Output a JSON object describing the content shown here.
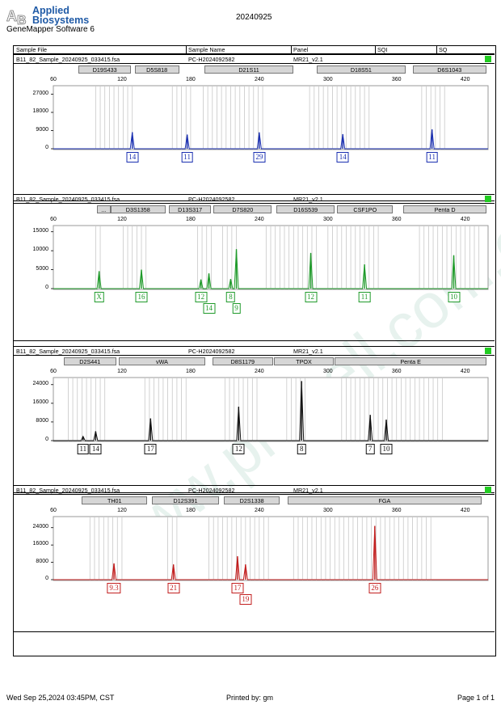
{
  "header": {
    "brand_line1": "Applied",
    "brand_line2": "Biosystems",
    "software": "GeneMapper Software 6",
    "date": "20240925"
  },
  "columns": [
    "Sample File",
    "Sample Name",
    "Panel",
    "SQI",
    "SQ"
  ],
  "watermark": "www.probell.com.cn",
  "footer": {
    "printed_at": "Wed Sep 25,2024 03:45PM, CST",
    "printed_by": "Printed by: gm",
    "page": "Page 1 of 1"
  },
  "chart_data": [
    {
      "type": "line",
      "dye_color": "#1a2fb0",
      "sample_file": "B11_82_Sample_20240925_033415.fsa",
      "sample_name": "PC-H2024092582",
      "panel": "MR21_v2.1",
      "xlim": [
        60,
        440
      ],
      "x_ticks": [
        60,
        120,
        180,
        240,
        300,
        360,
        420
      ],
      "ylim": [
        0,
        30000
      ],
      "y_ticks": [
        0,
        9000,
        18000,
        27000
      ],
      "loci": [
        {
          "name": "D19S433",
          "start": 82,
          "end": 128
        },
        {
          "name": "D5S818",
          "start": 131,
          "end": 170
        },
        {
          "name": "D21S11",
          "start": 192,
          "end": 270
        },
        {
          "name": "D18S51",
          "start": 290,
          "end": 368
        },
        {
          "name": "D6S1043",
          "start": 374,
          "end": 444
        }
      ],
      "peaks": [
        {
          "x": 129,
          "height": 8200,
          "allele": "14"
        },
        {
          "x": 177,
          "height": 7000,
          "allele": "11"
        },
        {
          "x": 240,
          "height": 8100,
          "allele": "29"
        },
        {
          "x": 313,
          "height": 7200,
          "allele": "14"
        },
        {
          "x": 391,
          "height": 9600,
          "allele": "11"
        }
      ],
      "bins": [
        [
          97,
          131
        ],
        [
          164,
          180
        ],
        [
          191,
          243
        ],
        [
          284,
          337
        ],
        [
          382,
          404
        ]
      ]
    },
    {
      "type": "line",
      "dye_color": "#1f9a2a",
      "sample_file": "B11_82_Sample_20240925_033415.fsa",
      "sample_name": "PC-H2024092582",
      "panel": "MR21_v2.1",
      "xlim": [
        60,
        440
      ],
      "x_ticks": [
        60,
        120,
        180,
        240,
        300,
        360,
        420
      ],
      "ylim": [
        0,
        16000
      ],
      "y_ticks": [
        0,
        5000,
        10000,
        15000
      ],
      "loci": [
        {
          "name": "...",
          "start": 98,
          "end": 110
        },
        {
          "name": "D3S1358",
          "start": 110,
          "end": 158
        },
        {
          "name": "D13S317",
          "start": 161,
          "end": 198
        },
        {
          "name": "D7S820",
          "start": 200,
          "end": 251
        },
        {
          "name": "D16S539",
          "start": 255,
          "end": 306
        },
        {
          "name": "CSF1PO",
          "start": 308,
          "end": 357
        },
        {
          "name": "Penta D",
          "start": 366,
          "end": 460
        }
      ],
      "peaks": [
        {
          "x": 100,
          "height": 4600,
          "allele": "X"
        },
        {
          "x": 137,
          "height": 5000,
          "allele": "16"
        },
        {
          "x": 189,
          "height": 2400,
          "allele": "12"
        },
        {
          "x": 196,
          "height": 4000,
          "allele": "14"
        },
        {
          "x": 215,
          "height": 2500,
          "allele": "8"
        },
        {
          "x": 220,
          "height": 10400,
          "allele": "9"
        },
        {
          "x": 285,
          "height": 9400,
          "allele": "12"
        },
        {
          "x": 332,
          "height": 6400,
          "allele": "11"
        },
        {
          "x": 410,
          "height": 8800,
          "allele": "10"
        }
      ],
      "bins": [
        [
          97,
          104
        ],
        [
          121,
          141
        ],
        [
          186,
          200
        ],
        [
          208,
          222
        ],
        [
          246,
          290
        ],
        [
          300,
          345
        ],
        [
          380,
          435
        ]
      ]
    },
    {
      "type": "line",
      "dye_color": "#111111",
      "sample_file": "B11_82_Sample_20240925_033415.fsa",
      "sample_name": "PC-H2024092582",
      "panel": "MR21_v2.1",
      "xlim": [
        60,
        440
      ],
      "x_ticks": [
        60,
        120,
        180,
        240,
        300,
        360,
        420
      ],
      "ylim": [
        0,
        26000
      ],
      "y_ticks": [
        0,
        8000,
        16000,
        24000
      ],
      "loci": [
        {
          "name": "D2S441",
          "start": 69,
          "end": 115
        },
        {
          "name": "vWA",
          "start": 117,
          "end": 193
        },
        {
          "name": "D8S1179",
          "start": 199,
          "end": 252
        },
        {
          "name": "TPOX",
          "start": 253,
          "end": 305
        },
        {
          "name": "Penta E",
          "start": 306,
          "end": 444
        }
      ],
      "peaks": [
        {
          "x": 86,
          "height": 1800,
          "allele": "11"
        },
        {
          "x": 97,
          "height": 4000,
          "allele": "14"
        },
        {
          "x": 145,
          "height": 9500,
          "allele": "17"
        },
        {
          "x": 222,
          "height": 14500,
          "allele": "12"
        },
        {
          "x": 277,
          "height": 25500,
          "allele": "8"
        },
        {
          "x": 337,
          "height": 11000,
          "allele": "7"
        },
        {
          "x": 351,
          "height": 9000,
          "allele": "10"
        }
      ],
      "bins": [
        [
          73,
          105
        ],
        [
          140,
          176
        ],
        [
          210,
          240
        ],
        [
          264,
          280
        ],
        [
          312,
          400
        ]
      ]
    },
    {
      "type": "line",
      "dye_color": "#c21e1e",
      "sample_file": "B11_82_Sample_20240925_033415.fsa",
      "sample_name": "PC-H2024092582",
      "panel": "MR21_v2.1",
      "xlim": [
        60,
        440
      ],
      "x_ticks": [
        60,
        120,
        180,
        240,
        300,
        360,
        420
      ],
      "ylim": [
        0,
        28000
      ],
      "y_ticks": [
        0,
        8000,
        16000,
        24000
      ],
      "loci": [
        {
          "name": "TH01",
          "start": 85,
          "end": 142
        },
        {
          "name": "D12S391",
          "start": 146,
          "end": 205
        },
        {
          "name": "D2S1338",
          "start": 209,
          "end": 258
        },
        {
          "name": "FGA",
          "start": 265,
          "end": 434
        }
      ],
      "peaks": [
        {
          "x": 113,
          "height": 7500,
          "allele": "9.3"
        },
        {
          "x": 165,
          "height": 7000,
          "allele": "21"
        },
        {
          "x": 221,
          "height": 10800,
          "allele": "17"
        },
        {
          "x": 228,
          "height": 7000,
          "allele": "19"
        },
        {
          "x": 341,
          "height": 24800,
          "allele": "26"
        }
      ],
      "bins": [
        [
          92,
          120
        ],
        [
          160,
          168
        ],
        [
          196,
          250
        ],
        [
          270,
          390
        ]
      ]
    }
  ]
}
